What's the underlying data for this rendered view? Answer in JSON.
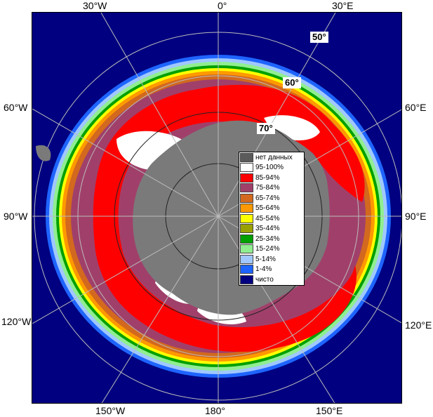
{
  "map": {
    "longitude_labels": {
      "top": [
        "30°W",
        "0°",
        "30°E"
      ],
      "left": [
        "60°W",
        "90°W",
        "120°W"
      ],
      "right": [
        "60°E",
        "90°E",
        "120°E"
      ],
      "bottom": [
        "150°W",
        "180°",
        "150°E"
      ]
    },
    "latitude_labels": [
      "50°",
      "60°",
      "70°"
    ]
  },
  "legend": {
    "items": [
      {
        "label": "нет данных",
        "color": "#5a5a5a"
      },
      {
        "label": "95-100%",
        "color": "#ffffff"
      },
      {
        "label": "85-94%",
        "color": "#ff0000"
      },
      {
        "label": "75-84%",
        "color": "#a0406a"
      },
      {
        "label": "65-74%",
        "color": "#d2691e"
      },
      {
        "label": "55-64%",
        "color": "#ff9900"
      },
      {
        "label": "45-54%",
        "color": "#ffff00"
      },
      {
        "label": "35-44%",
        "color": "#9aa000"
      },
      {
        "label": "25-34%",
        "color": "#00a000"
      },
      {
        "label": "15-24%",
        "color": "#90ee90"
      },
      {
        "label": "5-14%",
        "color": "#a0c8ff"
      },
      {
        "label": "1-4%",
        "color": "#1e64ff"
      },
      {
        "label": "чисто",
        "color": "#000080"
      }
    ]
  },
  "colors": {
    "land": "#8c8c8c",
    "grid": "#bbbbbb",
    "ocean": "#000080"
  }
}
